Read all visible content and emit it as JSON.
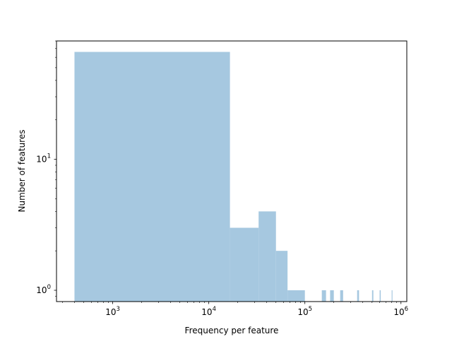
{
  "chart_data": {
    "type": "bar",
    "title": "",
    "xlabel": "Frequency per feature",
    "ylabel": "Number of features",
    "xscale": "log",
    "yscale": "log",
    "xlim": [
      260,
      1150000
    ],
    "ylim": [
      0.82,
      80
    ],
    "grid": false,
    "legend": "none",
    "bar_color": "#a6c8e0",
    "x_ticks": [
      {
        "value": 1000,
        "base": "10",
        "exp": "3"
      },
      {
        "value": 10000,
        "base": "10",
        "exp": "4"
      },
      {
        "value": 100000,
        "base": "10",
        "exp": "5"
      },
      {
        "value": 1000000,
        "base": "10",
        "exp": "6"
      }
    ],
    "y_ticks": [
      {
        "value": 1,
        "base": "10",
        "exp": "0"
      },
      {
        "value": 10,
        "base": "10",
        "exp": "1"
      }
    ],
    "bins": [
      {
        "x0": 400,
        "x1": 16600,
        "count": 66
      },
      {
        "x0": 16600,
        "x1": 33000,
        "count": 3
      },
      {
        "x0": 33000,
        "x1": 50000,
        "count": 4
      },
      {
        "x0": 50000,
        "x1": 66000,
        "count": 2
      },
      {
        "x0": 66000,
        "x1": 100000,
        "count": 1
      },
      {
        "x0": 150000,
        "x1": 166000,
        "count": 1
      },
      {
        "x0": 183000,
        "x1": 200000,
        "count": 1
      },
      {
        "x0": 233000,
        "x1": 250000,
        "count": 1
      },
      {
        "x0": 350000,
        "x1": 366000,
        "count": 1
      },
      {
        "x0": 500000,
        "x1": 516000,
        "count": 1
      },
      {
        "x0": 600000,
        "x1": 616000,
        "count": 1
      },
      {
        "x0": 800000,
        "x1": 816000,
        "count": 1
      }
    ]
  }
}
